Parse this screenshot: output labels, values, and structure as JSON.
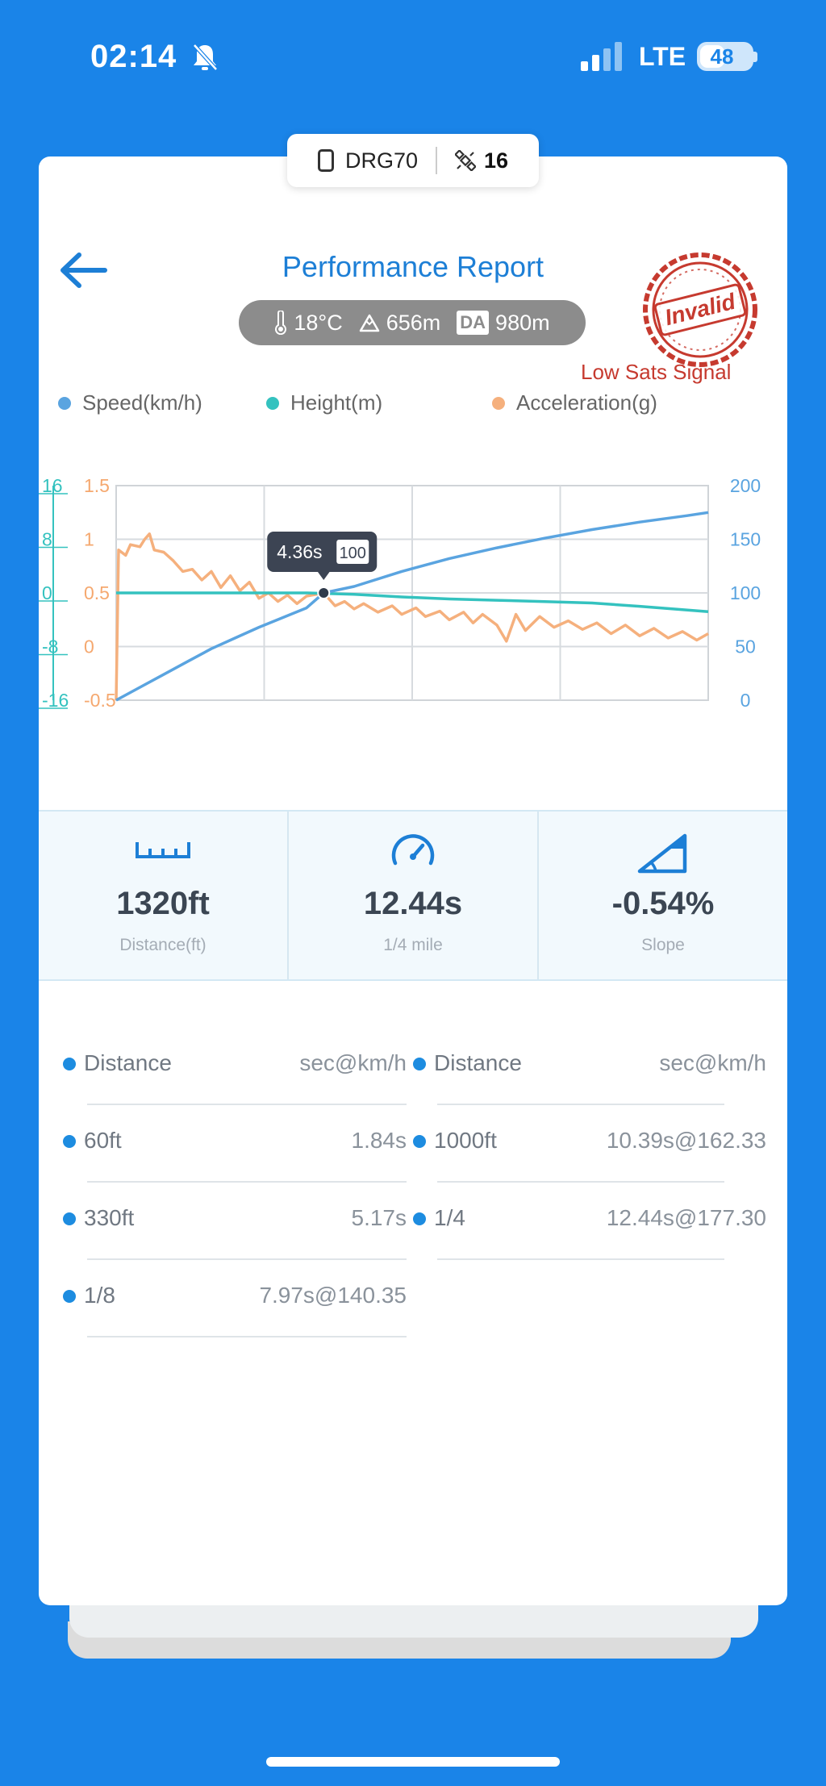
{
  "status_bar": {
    "time": "02:14",
    "network": "LTE",
    "battery": "48",
    "battery_level_pct": 48
  },
  "device": {
    "name": "DRG70",
    "satellites": "16"
  },
  "header": {
    "title": "Performance Report"
  },
  "conditions": {
    "temperature": "18°C",
    "altitude": "656m",
    "da_label": "DA",
    "density_altitude": "980m"
  },
  "stamp": {
    "text": "Invalid",
    "warning": "Low Sats Signal"
  },
  "legend": [
    {
      "label": "Speed(km/h)",
      "color": "#5aa4e0"
    },
    {
      "label": "Height(m)",
      "color": "#34c2bf"
    },
    {
      "label": "Acceleration(g)",
      "color": "#f5b07d"
    }
  ],
  "chart_data": {
    "type": "line",
    "x_range_s": [
      0,
      12.44
    ],
    "tooltip": {
      "time": "4.36s",
      "value": "100"
    },
    "axes": {
      "height_ticks": [
        "16",
        "8",
        "0",
        "-8",
        "-16"
      ],
      "accel_ticks": [
        "1.5",
        "1",
        "0.5",
        "0",
        "-0.5"
      ],
      "speed_ticks": [
        "200",
        "150",
        "100",
        "50",
        "0"
      ],
      "height_range": [
        -16,
        16
      ],
      "accel_range": [
        -0.5,
        1.5
      ],
      "speed_range": [
        0,
        200
      ]
    },
    "series": [
      {
        "name": "Speed(km/h)",
        "color": "#5aa4e0",
        "axis": "speed",
        "points": [
          [
            0,
            0
          ],
          [
            0.5,
            12
          ],
          [
            1,
            24
          ],
          [
            1.5,
            36
          ],
          [
            2,
            48
          ],
          [
            2.5,
            58
          ],
          [
            3,
            68
          ],
          [
            3.5,
            77
          ],
          [
            4,
            86
          ],
          [
            4.36,
            100
          ],
          [
            5,
            106
          ],
          [
            6,
            120
          ],
          [
            7,
            132
          ],
          [
            8,
            142
          ],
          [
            9,
            151
          ],
          [
            10,
            159
          ],
          [
            11,
            166
          ],
          [
            12,
            172
          ],
          [
            12.44,
            175
          ]
        ]
      },
      {
        "name": "Height(m)",
        "color": "#34c2bf",
        "axis": "height",
        "points": [
          [
            0,
            0
          ],
          [
            2,
            0
          ],
          [
            4,
            0
          ],
          [
            5,
            -0.2
          ],
          [
            6,
            -0.6
          ],
          [
            7,
            -0.9
          ],
          [
            8,
            -1.1
          ],
          [
            9,
            -1.3
          ],
          [
            10,
            -1.5
          ],
          [
            11,
            -2.0
          ],
          [
            12.44,
            -2.8
          ]
        ]
      },
      {
        "name": "Acceleration(g)",
        "color": "#f5b07d",
        "axis": "accel",
        "points": [
          [
            0,
            -0.5
          ],
          [
            0.05,
            0.9
          ],
          [
            0.2,
            0.85
          ],
          [
            0.3,
            0.95
          ],
          [
            0.5,
            0.93
          ],
          [
            0.6,
            1.0
          ],
          [
            0.7,
            1.05
          ],
          [
            0.8,
            0.9
          ],
          [
            1,
            0.88
          ],
          [
            1.2,
            0.8
          ],
          [
            1.4,
            0.7
          ],
          [
            1.6,
            0.72
          ],
          [
            1.8,
            0.62
          ],
          [
            2,
            0.7
          ],
          [
            2.2,
            0.55
          ],
          [
            2.4,
            0.66
          ],
          [
            2.6,
            0.52
          ],
          [
            2.8,
            0.6
          ],
          [
            3,
            0.45
          ],
          [
            3.2,
            0.5
          ],
          [
            3.4,
            0.42
          ],
          [
            3.6,
            0.48
          ],
          [
            3.8,
            0.4
          ],
          [
            4,
            0.47
          ],
          [
            4.36,
            0.5
          ],
          [
            4.6,
            0.38
          ],
          [
            4.8,
            0.42
          ],
          [
            5,
            0.35
          ],
          [
            5.2,
            0.4
          ],
          [
            5.5,
            0.32
          ],
          [
            5.8,
            0.38
          ],
          [
            6,
            0.3
          ],
          [
            6.3,
            0.36
          ],
          [
            6.5,
            0.28
          ],
          [
            6.8,
            0.33
          ],
          [
            7,
            0.25
          ],
          [
            7.3,
            0.32
          ],
          [
            7.5,
            0.22
          ],
          [
            7.7,
            0.3
          ],
          [
            8,
            0.2
          ],
          [
            8.2,
            0.05
          ],
          [
            8.4,
            0.3
          ],
          [
            8.6,
            0.15
          ],
          [
            8.9,
            0.28
          ],
          [
            9.2,
            0.18
          ],
          [
            9.5,
            0.24
          ],
          [
            9.8,
            0.16
          ],
          [
            10.1,
            0.22
          ],
          [
            10.4,
            0.12
          ],
          [
            10.7,
            0.2
          ],
          [
            11,
            0.1
          ],
          [
            11.3,
            0.17
          ],
          [
            11.6,
            0.08
          ],
          [
            11.9,
            0.14
          ],
          [
            12.2,
            0.06
          ],
          [
            12.44,
            0.12
          ]
        ]
      }
    ]
  },
  "summary": [
    {
      "value": "1320ft",
      "label": "Distance(ft)",
      "icon": "ruler-icon"
    },
    {
      "value": "12.44s",
      "label": "1/4 mile",
      "icon": "speedometer-icon"
    },
    {
      "value": "-0.54%",
      "label": "Slope",
      "icon": "slope-icon"
    }
  ],
  "splits": {
    "left": [
      {
        "name": "Distance",
        "value": "sec@km/h"
      },
      {
        "name": "60ft",
        "value": "1.84s"
      },
      {
        "name": "330ft",
        "value": "5.17s"
      },
      {
        "name": "1/8",
        "value": "7.97s@140.35"
      }
    ],
    "right": [
      {
        "name": "Distance",
        "value": "sec@km/h"
      },
      {
        "name": "1000ft",
        "value": "10.39s@162.33"
      },
      {
        "name": "1/4",
        "value": "12.44s@177.30"
      }
    ]
  }
}
